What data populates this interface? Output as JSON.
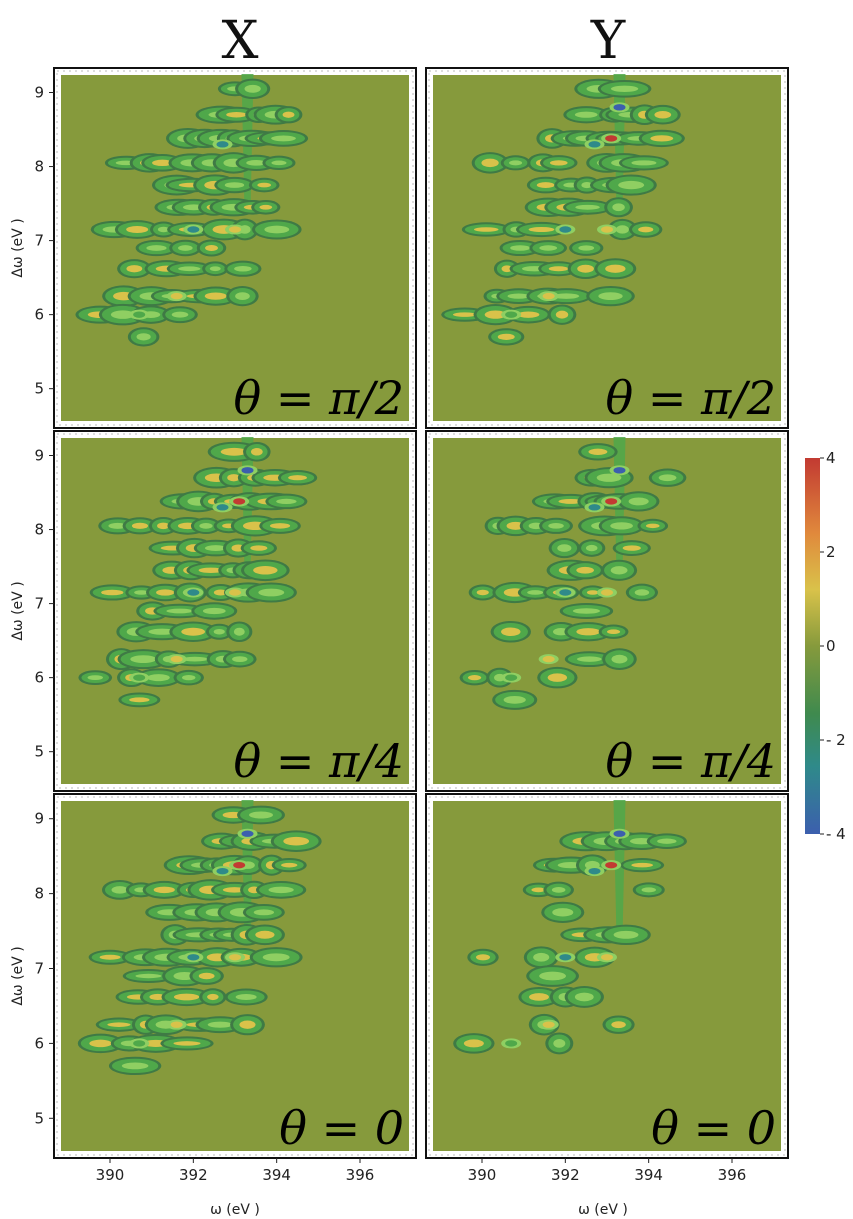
{
  "chart_data": {
    "type": "heatmap",
    "columns": [
      "X",
      "Y"
    ],
    "rows": [
      {
        "theta_label": "θ = π/2"
      },
      {
        "theta_label": "θ = π/4"
      },
      {
        "theta_label": "θ = 0"
      }
    ],
    "xlabel": "ω (eV )",
    "ylabel": "Δω (eV )",
    "xlim": [
      388.8,
      397.2
    ],
    "ylim": [
      4.55,
      9.25
    ],
    "xticks": [
      390,
      392,
      394,
      396
    ],
    "yticks": [
      5,
      6,
      7,
      8,
      9
    ],
    "colorbar": {
      "range": [
        -4,
        4
      ],
      "ticks": [
        4,
        2,
        0,
        -2,
        -4
      ],
      "tick_labels": [
        "4",
        "2",
        "0",
        "- 2",
        "- 4"
      ],
      "colors": [
        "#c23a32",
        "#e0893c",
        "#d9c24a",
        "#869a3c",
        "#3f8a4e",
        "#2f8a8a",
        "#3c5fae"
      ]
    },
    "background_value": 0,
    "background_color": "#869a3c",
    "features": [
      {
        "omega": 390.7,
        "domega": 6.0,
        "value": -1.5
      },
      {
        "omega": 391.6,
        "domega": 6.25,
        "value": 1.5
      },
      {
        "omega": 392.0,
        "domega": 7.15,
        "value": -2.5
      },
      {
        "omega": 393.0,
        "domega": 7.15,
        "value": 1.5
      },
      {
        "omega": 393.1,
        "domega": 8.38,
        "value": 4.0
      },
      {
        "omega": 393.3,
        "domega": 8.8,
        "value": -4.0
      },
      {
        "omega": 392.7,
        "domega": 8.3,
        "value": -3.0
      }
    ]
  }
}
